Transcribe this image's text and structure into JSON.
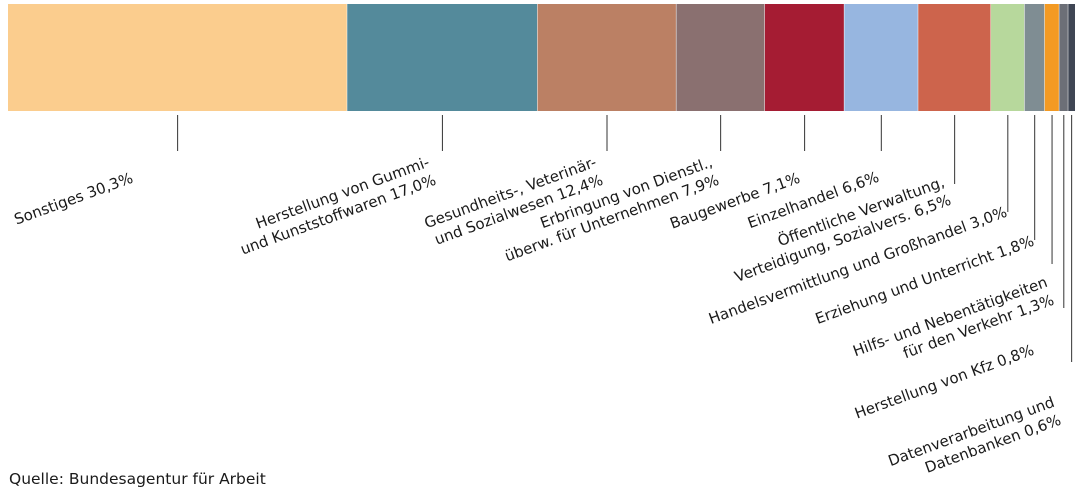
{
  "chart_data": {
    "type": "bar",
    "orientation": "horizontal-stacked",
    "categories": [
      "Sonstiges",
      "Herstellung von Gummi- und Kunststoffwaren",
      "Gesundheits-, Veterinär- und Sozialwesen",
      "Erbringung von Dienstl., überw. für Unternehmen",
      "Baugewerbe",
      "Einzelhandel",
      "Öffentliche Verwaltung, Verteidigung, Sozialvers.",
      "Handelsvermittlung und Großhandel",
      "Erziehung und Unterricht",
      "Hilfs- und Nebentätigkeiten für den Verkehr",
      "Herstellung von Kfz",
      "Datenverarbeitung und Datenbanken"
    ],
    "values": [
      30.3,
      17.0,
      12.4,
      7.9,
      7.1,
      6.6,
      6.5,
      3.0,
      1.8,
      1.3,
      0.8,
      0.6
    ],
    "unit": "%",
    "labels": [
      [
        "Sonstiges 30,3%"
      ],
      [
        "Herstellung von Gummi-",
        "und Kunststoffwaren 17,0%"
      ],
      [
        "Gesundheits-, Veterinär-",
        "und Sozialwesen 12,4%"
      ],
      [
        "Erbringung von Dienstl.,",
        "überw. für Unternehmen 7,9%"
      ],
      [
        "Baugewerbe 7,1%"
      ],
      [
        "Einzelhandel 6,6%"
      ],
      [
        "Öffentliche Verwaltung,",
        "Verteidigung, Sozialvers. 6,5%"
      ],
      [
        "Handelsvermittlung und Großhandel 3,0%"
      ],
      [
        "Erziehung und Unterricht 1,8%"
      ],
      [
        "Hilfs- und Nebentätigkeiten",
        "für den Verkehr 1,3%"
      ],
      [
        "Herstellung von Kfz 0,8%"
      ],
      [
        "Datenverarbeitung und",
        "Datenbanken 0,6%"
      ]
    ],
    "colors": [
      "#fbcd8e",
      "#548a9b",
      "#bb8064",
      "#8a7070",
      "#a51c33",
      "#97b6e0",
      "#cd644c",
      "#b7d89c",
      "#7f8d93",
      "#f39a23",
      "#6c6f77",
      "#3f4654"
    ],
    "title": "",
    "xlabel": "",
    "ylabel": ""
  },
  "source": "Quelle: Bundesagentur für Arbeit"
}
